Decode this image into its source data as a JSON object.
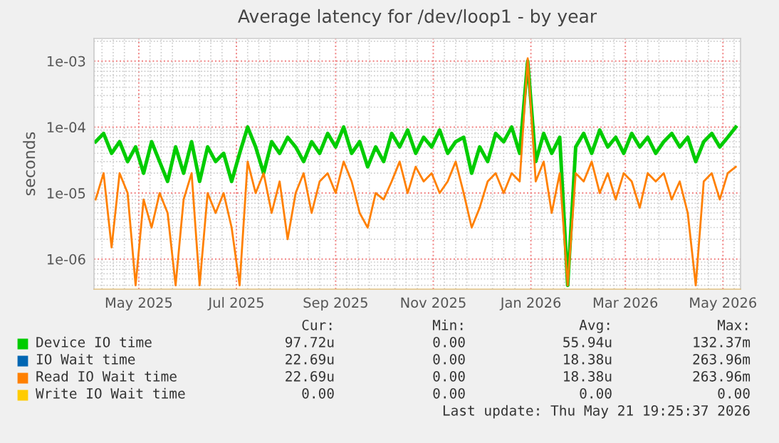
{
  "chart_data": {
    "type": "line",
    "title": "Average latency for /dev/loop1 - by year",
    "ylabel": "seconds",
    "log": "y",
    "x": [
      "2025-04-04",
      "2025-04-09",
      "2025-04-14",
      "2025-04-19",
      "2025-04-24",
      "2025-04-29",
      "2025-05-04",
      "2025-05-09",
      "2025-05-14",
      "2025-05-19",
      "2025-05-24",
      "2025-05-29",
      "2025-06-03",
      "2025-06-08",
      "2025-06-13",
      "2025-06-18",
      "2025-06-23",
      "2025-06-28",
      "2025-07-03",
      "2025-07-08",
      "2025-07-13",
      "2025-07-18",
      "2025-07-23",
      "2025-07-28",
      "2025-08-02",
      "2025-08-07",
      "2025-08-12",
      "2025-08-17",
      "2025-08-22",
      "2025-08-27",
      "2025-09-01",
      "2025-09-06",
      "2025-09-11",
      "2025-09-16",
      "2025-09-21",
      "2025-09-26",
      "2025-10-01",
      "2025-10-06",
      "2025-10-11",
      "2025-10-16",
      "2025-10-21",
      "2025-10-26",
      "2025-10-31",
      "2025-11-05",
      "2025-11-10",
      "2025-11-15",
      "2025-11-20",
      "2025-11-25",
      "2025-11-30",
      "2025-12-05",
      "2025-12-10",
      "2025-12-15",
      "2025-12-20",
      "2025-12-25",
      "2025-12-30",
      "2026-01-04",
      "2026-01-09",
      "2026-01-14",
      "2026-01-19",
      "2026-01-24",
      "2026-01-29",
      "2026-02-03",
      "2026-02-08",
      "2026-02-13",
      "2026-02-18",
      "2026-02-23",
      "2026-02-28",
      "2026-03-05",
      "2026-03-10",
      "2026-03-15",
      "2026-03-20",
      "2026-03-25",
      "2026-03-30",
      "2026-04-04",
      "2026-04-09",
      "2026-04-14",
      "2026-04-19",
      "2026-04-24",
      "2026-04-29",
      "2026-05-04",
      "2026-05-09"
    ],
    "series": [
      {
        "name": "Device IO time",
        "color": "#00cc00",
        "values": [
          6e-05,
          8e-05,
          4e-05,
          6e-05,
          3e-05,
          5e-05,
          2e-05,
          6e-05,
          3e-05,
          1.5e-05,
          5e-05,
          2e-05,
          6e-05,
          1.5e-05,
          5e-05,
          3e-05,
          4e-05,
          1.5e-05,
          4e-05,
          0.0001,
          5e-05,
          2e-05,
          6e-05,
          4e-05,
          7e-05,
          5e-05,
          3e-05,
          6e-05,
          4e-05,
          8e-05,
          5e-05,
          0.0001,
          4e-05,
          6e-05,
          2.5e-05,
          5e-05,
          3e-05,
          8e-05,
          5e-05,
          9e-05,
          4e-05,
          7e-05,
          5e-05,
          9e-05,
          4e-05,
          6e-05,
          7e-05,
          2e-05,
          5e-05,
          3e-05,
          8e-05,
          6e-05,
          0.0001,
          4e-05,
          0.001,
          3e-05,
          8e-05,
          4e-05,
          7e-05,
          4e-07,
          5e-05,
          8e-05,
          4e-05,
          9e-05,
          5e-05,
          7e-05,
          4e-05,
          8e-05,
          5e-05,
          7e-05,
          4e-05,
          6e-05,
          8e-05,
          5e-05,
          7e-05,
          3e-05,
          6e-05,
          8e-05,
          5e-05,
          7e-05,
          0.0001
        ]
      },
      {
        "name": "IO Wait time",
        "color": "#0066b3",
        "values": [
          null,
          null,
          null,
          null,
          null,
          null,
          null,
          null,
          null,
          null,
          null,
          null,
          null,
          null,
          null,
          null,
          null,
          null,
          null,
          null,
          null,
          null,
          null,
          null,
          null,
          null,
          null,
          null,
          null,
          null,
          null,
          null,
          null,
          null,
          null,
          null,
          null,
          null,
          null,
          null,
          null,
          null,
          null,
          null,
          null,
          null,
          null,
          null,
          null,
          null,
          null,
          null,
          null,
          null,
          null,
          null,
          null,
          null,
          null,
          null,
          null,
          null,
          null,
          null,
          null,
          null,
          null,
          null,
          null,
          null,
          null,
          null,
          null,
          null,
          null,
          null,
          null,
          null,
          null,
          null,
          null
        ]
      },
      {
        "name": "Read IO Wait time",
        "color": "#ff8000",
        "values": [
          8e-06,
          2e-05,
          1.5e-06,
          2e-05,
          1e-05,
          4e-07,
          8e-06,
          3e-06,
          1e-05,
          5e-06,
          4e-07,
          8e-06,
          2e-05,
          4e-07,
          1e-05,
          5e-06,
          1e-05,
          3e-06,
          4e-07,
          3e-05,
          1e-05,
          2e-05,
          5e-06,
          1.5e-05,
          2e-06,
          1e-05,
          2e-05,
          5e-06,
          1.5e-05,
          2e-05,
          1e-05,
          3e-05,
          1.5e-05,
          5e-06,
          3e-06,
          1e-05,
          8e-06,
          1.5e-05,
          3e-05,
          1e-05,
          2.5e-05,
          1.5e-05,
          2e-05,
          1e-05,
          1.5e-05,
          3e-05,
          1e-05,
          3e-06,
          6e-06,
          1.5e-05,
          2e-05,
          1e-05,
          2e-05,
          1.5e-05,
          0.0011,
          1.5e-05,
          3e-05,
          5e-06,
          2e-05,
          4e-07,
          2e-05,
          1.5e-05,
          3e-05,
          1e-05,
          2e-05,
          8e-06,
          2e-05,
          1.5e-05,
          6e-06,
          2e-05,
          1.5e-05,
          2e-05,
          8e-06,
          1.5e-05,
          5e-06,
          4e-07,
          1.5e-05,
          2e-05,
          8e-06,
          2e-05,
          2.5e-05
        ]
      },
      {
        "name": "Write IO Wait time",
        "color": "#ffcc00",
        "values": [
          null,
          null,
          null,
          null,
          null,
          null,
          null,
          null,
          null,
          null,
          null,
          null,
          null,
          null,
          null,
          null,
          null,
          null,
          null,
          null,
          null,
          null,
          null,
          null,
          null,
          null,
          null,
          null,
          null,
          null,
          null,
          null,
          null,
          null,
          null,
          null,
          null,
          null,
          null,
          null,
          null,
          null,
          null,
          null,
          null,
          null,
          null,
          null,
          null,
          null,
          null,
          null,
          null,
          null,
          null,
          null,
          null,
          null,
          null,
          null,
          null,
          null,
          null,
          null,
          null,
          null,
          null,
          null,
          null,
          null,
          null,
          null,
          null,
          null,
          null,
          null,
          null,
          null,
          null,
          null,
          null
        ]
      }
    ],
    "xlim": [
      "2025-04-03",
      "2026-05-12"
    ],
    "xticks": [
      {
        "value": "2025-05-01",
        "label": "May 2025"
      },
      {
        "value": "2025-07-01",
        "label": "Jul 2025"
      },
      {
        "value": "2025-09-01",
        "label": "Sep 2025"
      },
      {
        "value": "2025-11-01",
        "label": "Nov 2025"
      },
      {
        "value": "2026-01-01",
        "label": "Jan 2026"
      },
      {
        "value": "2026-03-01",
        "label": "Mar 2026"
      },
      {
        "value": "2026-05-01",
        "label": "May 2026"
      }
    ],
    "ylim": [
      3.5e-07,
      0.0022
    ],
    "yticks": [
      {
        "value": 1e-06,
        "label": "1e-06"
      },
      {
        "value": 1e-05,
        "label": "1e-05"
      },
      {
        "value": 0.0001,
        "label": "1e-04"
      },
      {
        "value": 0.001,
        "label": "1e-03"
      }
    ],
    "grid": true,
    "legend": "bottom",
    "annotations": [
      "Cur:",
      "Min:",
      "Avg:",
      "Max:",
      "97.72u",
      "0.00",
      "55.94u",
      "132.37m",
      "22.69u",
      "0.00",
      "18.38u",
      "263.96m",
      "22.69u",
      "0.00",
      "18.38u",
      "263.96m",
      "0.00",
      "0.00",
      "0.00",
      "0.00",
      "Last update: Thu May 21 19:25:37 2026"
    ]
  }
}
